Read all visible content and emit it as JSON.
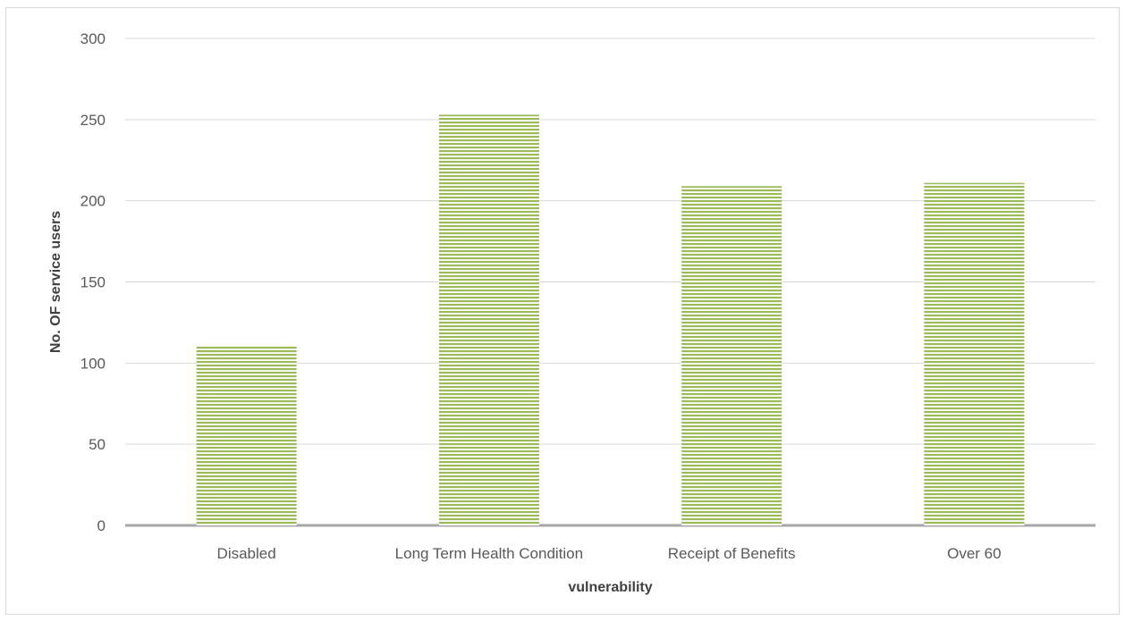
{
  "chart_data": {
    "type": "bar",
    "categories": [
      "Disabled",
      "Long Term Health Condition",
      "Receipt of Benefits",
      "Over 60"
    ],
    "values": [
      111,
      253,
      209,
      211
    ],
    "xlabel": "vulnerability",
    "ylabel": "No. OF service users",
    "ylim": [
      0,
      300
    ],
    "yticks": [
      0,
      50,
      100,
      150,
      200,
      250,
      300
    ],
    "grid": true,
    "bar_color": "#9bbb59",
    "bar_pattern": "horizontal-stripes"
  }
}
